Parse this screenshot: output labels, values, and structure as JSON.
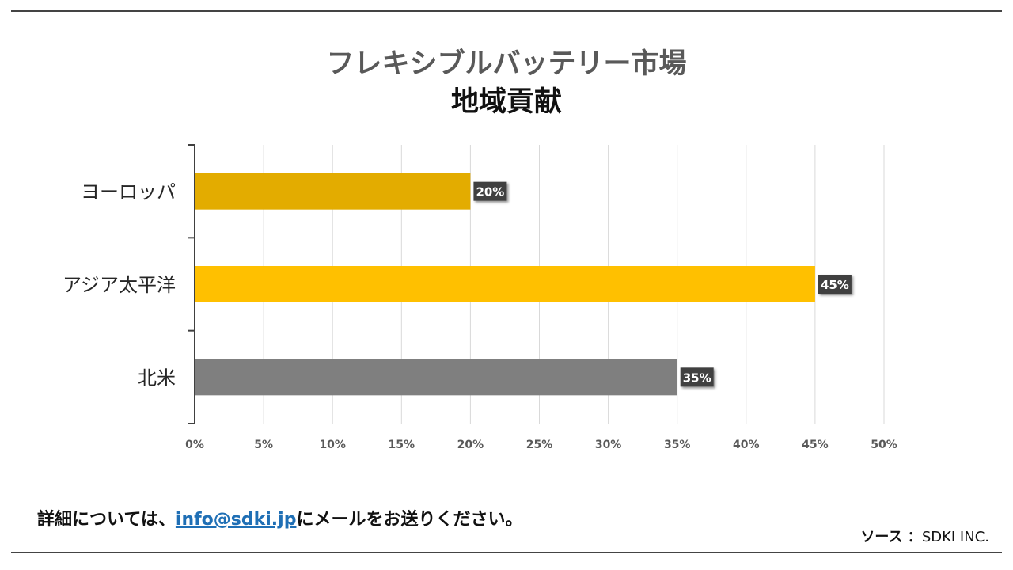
{
  "title_line1": "フレキシブルバッテリー市場",
  "title_line2": "地域貢献",
  "footer": {
    "prefix": "詳細については、",
    "email": "info@sdki.jp",
    "suffix": "にメールをお送りください。"
  },
  "source": {
    "label": "ソース ：",
    "value": "SDKI INC."
  },
  "chart_data": {
    "type": "bar",
    "orientation": "horizontal",
    "title": "フレキシブルバッテリー市場 地域貢献",
    "categories": [
      "ヨーロッパ",
      "アジア太平洋",
      "北米"
    ],
    "values": [
      20,
      45,
      35
    ],
    "data_labels": [
      "20%",
      "45%",
      "35%"
    ],
    "colors": [
      "#E3AC00",
      "#FFC000",
      "#7F7F7F"
    ],
    "xlim": [
      0,
      50
    ],
    "xticks": [
      0,
      5,
      10,
      15,
      20,
      25,
      30,
      35,
      40,
      45,
      50
    ],
    "xtick_labels": [
      "0%",
      "5%",
      "10%",
      "15%",
      "20%",
      "25%",
      "30%",
      "35%",
      "40%",
      "45%",
      "50%"
    ],
    "grid": true,
    "legend": "none"
  }
}
